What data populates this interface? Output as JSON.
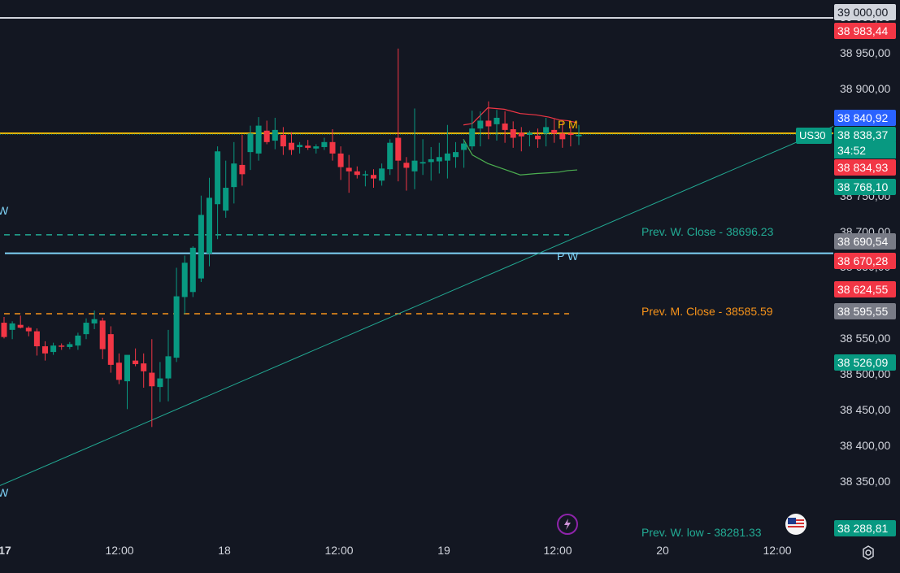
{
  "chart_data": {
    "type": "candlestick",
    "symbol": "US30",
    "y_axis_ticks": [
      "39 000,00",
      "38 950,00",
      "38 900,00",
      "38 750,00",
      "38 700,00",
      "38 650,00",
      "38 550,00",
      "38 500,00",
      "38 450,00",
      "38 400,00",
      "38 350,00"
    ],
    "y_range": [
      38268,
      39025
    ],
    "x_axis_ticks": [
      "17",
      "12:00",
      "18",
      "12:00",
      "19",
      "12:00",
      "20",
      "12:00"
    ],
    "price_badges": [
      {
        "label": "38 983,44",
        "color": "#f23645"
      },
      {
        "label": "38 840,92",
        "color": "#2962ff"
      },
      {
        "label": "38 838,37",
        "color": "#089981"
      },
      {
        "label": "34:52",
        "color": "#089981"
      },
      {
        "label": "38 834,93",
        "color": "#f23645"
      },
      {
        "label": "38 768,10",
        "color": "#089981"
      },
      {
        "label": "38 690,54",
        "color": "#787b86"
      },
      {
        "label": "38 670,28",
        "color": "#f23645"
      },
      {
        "label": "38 624,55",
        "color": "#f23645"
      },
      {
        "label": "38 595,55",
        "color": "#787b86"
      },
      {
        "label": "38 526,09",
        "color": "#089981"
      },
      {
        "label": "38 288,81",
        "color": "#089981"
      }
    ],
    "levels": [
      {
        "value": 38696.23,
        "label": "Prev. W. Close - 38696.23",
        "color": "#22ab94",
        "style": "dashed"
      },
      {
        "value": 38670.28,
        "label": "P W",
        "color": "#7fd3f7",
        "style": "solid"
      },
      {
        "value": 38585.59,
        "label": "Prev. M. Close - 38585.59",
        "color": "#f7931a",
        "style": "dashed"
      },
      {
        "value": 38838.37,
        "label": "P M",
        "color": "#f7b500",
        "style": "solid"
      },
      {
        "value": 39000,
        "label": "",
        "color": "#d1d4dc",
        "style": "solid"
      }
    ],
    "annotations": {
      "prev_w_low": "Prev. W. low - 38281.33",
      "w_left_top": "W",
      "w_left_bottom": "W"
    },
    "candles": [
      [
        38573,
        38581,
        38551,
        38553
      ],
      [
        38563,
        38575,
        38550,
        38572
      ],
      [
        38570,
        38583,
        38565,
        38566
      ],
      [
        38566,
        38568,
        38554,
        38561
      ],
      [
        38561,
        38565,
        38527,
        38540
      ],
      [
        38540,
        38547,
        38520,
        38530
      ],
      [
        38532,
        38545,
        38528,
        38541
      ],
      [
        38541,
        38544,
        38535,
        38540
      ],
      [
        38539,
        38546,
        38536,
        38543
      ],
      [
        38541,
        38559,
        38535,
        38555
      ],
      [
        38557,
        38579,
        38550,
        38573
      ],
      [
        38572,
        38590,
        38564,
        38578
      ],
      [
        38576,
        38580,
        38522,
        38536
      ],
      [
        38557,
        38568,
        38503,
        38514
      ],
      [
        38517,
        38530,
        38487,
        38493
      ],
      [
        38491,
        38522,
        38452,
        38528
      ],
      [
        38520,
        38537,
        38512,
        38515
      ],
      [
        38516,
        38530,
        38482,
        38505
      ],
      [
        38503,
        38550,
        38427,
        38484
      ],
      [
        38483,
        38518,
        38462,
        38495
      ],
      [
        38495,
        38563,
        38463,
        38526
      ],
      [
        38524,
        38650,
        38518,
        38610
      ],
      [
        38609,
        38667,
        38585,
        38657
      ],
      [
        38616,
        38680,
        38609,
        38678
      ],
      [
        38635,
        38751,
        38630,
        38724
      ],
      [
        38670,
        38776,
        38652,
        38748
      ],
      [
        38739,
        38820,
        38690,
        38813
      ],
      [
        38730,
        38800,
        38720,
        38762
      ],
      [
        38763,
        38826,
        38740,
        38796
      ],
      [
        38794,
        38836,
        38765,
        38781
      ],
      [
        38812,
        38849,
        38787,
        38838
      ],
      [
        38810,
        38861,
        38800,
        38849
      ],
      [
        38842,
        38856,
        38823,
        38826
      ],
      [
        38828,
        38860,
        38816,
        38843
      ],
      [
        38836,
        38847,
        38808,
        38820
      ],
      [
        38825,
        38840,
        38808,
        38815
      ],
      [
        38819,
        38826,
        38810,
        38822
      ],
      [
        38821,
        38829,
        38815,
        38818
      ],
      [
        38817,
        38823,
        38810,
        38820
      ],
      [
        38819,
        38832,
        38815,
        38826
      ],
      [
        38826,
        38844,
        38800,
        38810
      ],
      [
        38810,
        38820,
        38773,
        38791
      ],
      [
        38790,
        38808,
        38755,
        38785
      ],
      [
        38785,
        38792,
        38775,
        38780
      ],
      [
        38780,
        38786,
        38764,
        38781
      ],
      [
        38780,
        38788,
        38762,
        38775
      ],
      [
        38772,
        38796,
        38765,
        38789
      ],
      [
        38788,
        38830,
        38780,
        38825
      ],
      [
        38832,
        38957,
        38771,
        38800
      ],
      [
        38797,
        38805,
        38758,
        38790
      ],
      [
        38785,
        38873,
        38760,
        38800
      ],
      [
        38796,
        38830,
        38780,
        38798
      ],
      [
        38798,
        38819,
        38772,
        38802
      ],
      [
        38799,
        38825,
        38782,
        38805
      ],
      [
        38800,
        38850,
        38775,
        38810
      ],
      [
        38805,
        38826,
        38790,
        38812
      ],
      [
        38815,
        38829,
        38790,
        38824
      ],
      [
        38820,
        38870,
        38815,
        38845
      ],
      [
        38845,
        38869,
        38820,
        38856
      ],
      [
        38856,
        38883,
        38830,
        38848
      ],
      [
        38851,
        38871,
        38828,
        38860
      ],
      [
        38852,
        38869,
        38825,
        38843
      ],
      [
        38844,
        38855,
        38818,
        38832
      ],
      [
        38839,
        38847,
        38813,
        38834
      ],
      [
        38836,
        38842,
        38820,
        38839
      ],
      [
        38835,
        38845,
        38818,
        38830
      ],
      [
        38838,
        38860,
        38820,
        38847
      ],
      [
        38843,
        38858,
        38825,
        38838
      ],
      [
        38838,
        38854,
        38818,
        38830
      ],
      [
        38838,
        38848,
        38820,
        38836
      ],
      [
        38836,
        38850,
        38822,
        38836
      ]
    ],
    "candle_x_start": 5,
    "candle_x_step": 10.1,
    "trendline": {
      "from": [
        0,
        38345
      ],
      "to": [
        1025,
        38848
      ]
    },
    "bands": {
      "upper": [
        38850,
        38852,
        38874,
        38872,
        38866,
        38864,
        38861,
        38857,
        38856,
        38853
      ],
      "lower": [
        38830,
        38808,
        38796,
        38788,
        38780,
        38782,
        38783,
        38784,
        38786,
        38787
      ]
    },
    "band_x": [
      570,
      581,
      600,
      620,
      640,
      660,
      675,
      688,
      698,
      710
    ],
    "colors": {
      "up": "#089981",
      "down": "#f23645",
      "trend": "#22ab94",
      "band_upper": "#f23645",
      "band_lower": "#4caf50"
    }
  }
}
